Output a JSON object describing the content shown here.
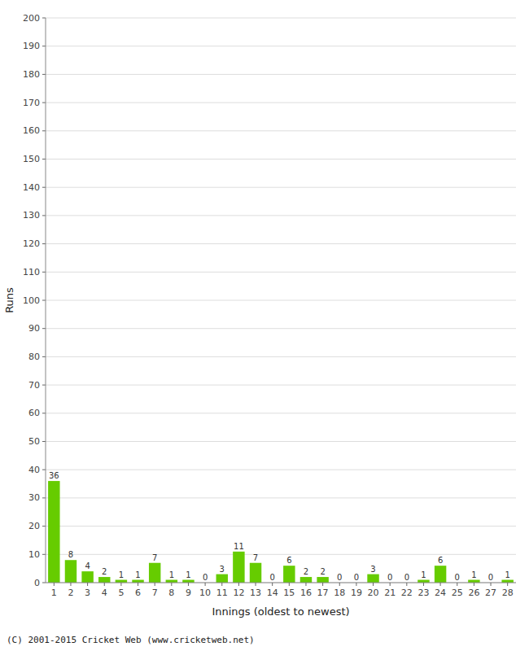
{
  "chart_data": {
    "type": "bar",
    "x_label": "Innings (oldest to newest)",
    "y_label": "Runs",
    "categories": [
      1,
      2,
      3,
      4,
      5,
      6,
      7,
      8,
      9,
      10,
      11,
      12,
      13,
      14,
      15,
      16,
      17,
      18,
      19,
      20,
      21,
      22,
      23,
      24,
      25,
      26,
      27,
      28
    ],
    "values": [
      36,
      8,
      4,
      2,
      1,
      1,
      7,
      1,
      1,
      0,
      3,
      11,
      7,
      0,
      6,
      2,
      2,
      0,
      0,
      3,
      0,
      0,
      1,
      6,
      0,
      1,
      0,
      1
    ],
    "color": "#66cc00",
    "data_labels": true,
    "ylim": [
      0,
      200
    ],
    "yticks": [
      0,
      10,
      20,
      30,
      40,
      50,
      60,
      70,
      80,
      90,
      100,
      110,
      120,
      130,
      140,
      150,
      160,
      170,
      180,
      190,
      200
    ],
    "grid": true,
    "annotations": [
      "(C) 2001-2015 Cricket Web (www.cricketweb.net)"
    ]
  }
}
